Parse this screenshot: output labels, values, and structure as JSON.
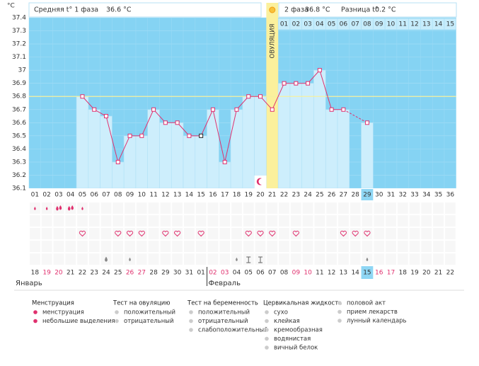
{
  "header": {
    "phase1_label": "Средняя t° 1 фаза",
    "phase1_value": "36.6 °C",
    "phase2_label": "2 фаза",
    "phase2_value": "36.8 °C",
    "diff_label": "Разница t°",
    "diff_value": "0.2 °C"
  },
  "chart_data": {
    "type": "line",
    "y_unit": "°C",
    "ylim": [
      36.1,
      37.4
    ],
    "yticks": [
      36.1,
      36.2,
      36.3,
      36.4,
      36.5,
      36.6,
      36.7,
      36.8,
      36.9,
      37,
      37.1,
      37.2,
      37.3,
      37.4
    ],
    "cycle_days": [
      "01",
      "02",
      "03",
      "04",
      "05",
      "06",
      "07",
      "08",
      "09",
      "10",
      "11",
      "12",
      "13",
      "14",
      "15",
      "16",
      "17",
      "18",
      "19",
      "20",
      "21",
      "22",
      "23",
      "24",
      "25",
      "26",
      "27",
      "28",
      "29",
      "30",
      "31",
      "32",
      "33",
      "34",
      "35",
      "36"
    ],
    "values": [
      null,
      null,
      null,
      null,
      36.8,
      36.7,
      36.65,
      36.3,
      36.5,
      36.5,
      36.7,
      36.6,
      36.6,
      36.5,
      36.5,
      36.7,
      36.3,
      36.7,
      36.8,
      36.8,
      36.7,
      36.9,
      36.9,
      36.9,
      37.0,
      36.7,
      36.7,
      null,
      36.6,
      null,
      null,
      null,
      null,
      null,
      null,
      null
    ],
    "coverline": 36.8,
    "ovulation_day": 21,
    "ovulation_label": "ОВУЛЯЦИЯ",
    "excluded_days": [
      15
    ],
    "today_day": 29,
    "phase2_days": [
      "01",
      "02",
      "03",
      "04",
      "05",
      "06",
      "07",
      "08",
      "09",
      "10",
      "11",
      "12",
      "13",
      "14",
      "15"
    ],
    "dates": [
      "18",
      "19",
      "20",
      "21",
      "22",
      "23",
      "24",
      "25",
      "26",
      "27",
      "28",
      "29",
      "30",
      "31",
      "01",
      "02",
      "03",
      "04",
      "05",
      "06",
      "07",
      "08",
      "09",
      "10",
      "11",
      "12",
      "13",
      "14",
      "15",
      "16",
      "17",
      "18",
      "19",
      "20",
      "21",
      "22"
    ],
    "weekend": [
      false,
      true,
      true,
      false,
      false,
      false,
      false,
      false,
      true,
      true,
      false,
      false,
      false,
      false,
      false,
      true,
      true,
      false,
      false,
      false,
      false,
      false,
      true,
      true,
      false,
      false,
      false,
      false,
      false,
      true,
      true,
      false,
      false,
      false,
      false,
      false
    ],
    "months": [
      {
        "label": "Январь",
        "day": 1
      },
      {
        "label": "Февраль",
        "day": 15
      }
    ],
    "menstruation": [
      1,
      2,
      3,
      4,
      5
    ],
    "menstruation_heavy": [
      3,
      4
    ],
    "sex": [
      5,
      8,
      9,
      10,
      12,
      13,
      15,
      19,
      20,
      21,
      23,
      27,
      28,
      29
    ],
    "fluid": [
      {
        "day": 7,
        "kind": "watery"
      },
      {
        "day": 9,
        "kind": "creamy"
      },
      {
        "day": 18,
        "kind": "creamy"
      },
      {
        "day": 19,
        "kind": "sticky"
      },
      {
        "day": 20,
        "kind": "sticky"
      },
      {
        "day": 29,
        "kind": "creamy"
      }
    ],
    "lunar_day": 20
  },
  "legend": [
    {
      "title": "Менструация",
      "items": [
        "менструация",
        "небольшие выделения"
      ]
    },
    {
      "title": "Тест на овуляцию",
      "items": [
        "положительный",
        "отрицательный"
      ]
    },
    {
      "title": "Тест на беременность",
      "items": [
        "положительный",
        "отрицательный",
        "слабоположительный"
      ]
    },
    {
      "title": "Цервикальная жидкость",
      "items": [
        "сухо",
        "клейкая",
        "кремообразная",
        "водянистая",
        "вичный белок"
      ]
    },
    {
      "items": [
        "половой акт",
        "прием лекарств",
        "лунный календарь"
      ]
    }
  ]
}
